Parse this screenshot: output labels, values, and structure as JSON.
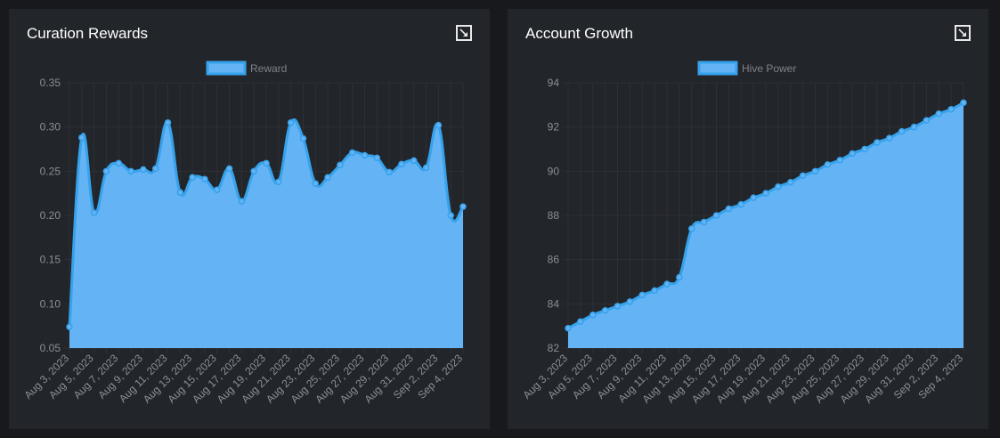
{
  "colors": {
    "accent": "#36a2eb",
    "fill": "#63b3f5",
    "grid": "#2d3035",
    "tick": "#8c8f95",
    "legend_text": "#7f8388"
  },
  "icons": {
    "expand": "expand-icon"
  },
  "charts": [
    {
      "title": "Curation Rewards",
      "chart_data": {
        "type": "area",
        "legend": {
          "position": "top",
          "entries": [
            "Reward"
          ]
        },
        "x": [
          "Aug 3, 2023",
          "Aug 4, 2023",
          "Aug 5, 2023",
          "Aug 6, 2023",
          "Aug 7, 2023",
          "Aug 8, 2023",
          "Aug 9, 2023",
          "Aug 10, 2023",
          "Aug 11, 2023",
          "Aug 12, 2023",
          "Aug 13, 2023",
          "Aug 14, 2023",
          "Aug 15, 2023",
          "Aug 16, 2023",
          "Aug 17, 2023",
          "Aug 18, 2023",
          "Aug 19, 2023",
          "Aug 20, 2023",
          "Aug 21, 2023",
          "Aug 22, 2023",
          "Aug 23, 2023",
          "Aug 24, 2023",
          "Aug 25, 2023",
          "Aug 26, 2023",
          "Aug 27, 2023",
          "Aug 28, 2023",
          "Aug 29, 2023",
          "Aug 30, 2023",
          "Aug 31, 2023",
          "Sep 1, 2023",
          "Sep 2, 2023",
          "Sep 3, 2023",
          "Sep 4, 2023"
        ],
        "x_ticks": [
          "Aug 3, 2023",
          "Aug 5, 2023",
          "Aug 7, 2023",
          "Aug 9, 2023",
          "Aug 11, 2023",
          "Aug 13, 2023",
          "Aug 15, 2023",
          "Aug 17, 2023",
          "Aug 19, 2023",
          "Aug 21, 2023",
          "Aug 23, 2023",
          "Aug 25, 2023",
          "Aug 27, 2023",
          "Aug 29, 2023",
          "Aug 31, 2023",
          "Sep 2, 2023",
          "Sep 4, 2023"
        ],
        "series": [
          {
            "name": "Reward",
            "values": [
              0.074,
              0.288,
              0.203,
              0.25,
              0.259,
              0.25,
              0.252,
              0.253,
              0.305,
              0.226,
              0.243,
              0.241,
              0.229,
              0.253,
              0.216,
              0.25,
              0.259,
              0.238,
              0.305,
              0.287,
              0.236,
              0.243,
              0.257,
              0.271,
              0.268,
              0.265,
              0.249,
              0.258,
              0.262,
              0.254,
              0.302,
              0.2,
              0.21
            ]
          }
        ],
        "ylim": [
          0.05,
          0.35
        ],
        "y_ticks": [
          "0.35",
          "0.30",
          "0.25",
          "0.20",
          "0.15",
          "0.10",
          "0.05"
        ],
        "grid": true
      }
    },
    {
      "title": "Account Growth",
      "chart_data": {
        "type": "area",
        "legend": {
          "position": "top",
          "entries": [
            "Hive Power"
          ]
        },
        "x": [
          "Aug 3, 2023",
          "Aug 4, 2023",
          "Aug 5, 2023",
          "Aug 6, 2023",
          "Aug 7, 2023",
          "Aug 8, 2023",
          "Aug 9, 2023",
          "Aug 10, 2023",
          "Aug 11, 2023",
          "Aug 12, 2023",
          "Aug 13, 2023",
          "Aug 14, 2023",
          "Aug 15, 2023",
          "Aug 16, 2023",
          "Aug 17, 2023",
          "Aug 18, 2023",
          "Aug 19, 2023",
          "Aug 20, 2023",
          "Aug 21, 2023",
          "Aug 22, 2023",
          "Aug 23, 2023",
          "Aug 24, 2023",
          "Aug 25, 2023",
          "Aug 26, 2023",
          "Aug 27, 2023",
          "Aug 28, 2023",
          "Aug 29, 2023",
          "Aug 30, 2023",
          "Aug 31, 2023",
          "Sep 1, 2023",
          "Sep 2, 2023",
          "Sep 3, 2023",
          "Sep 4, 2023"
        ],
        "x_ticks": [
          "Aug 3, 2023",
          "Aug 5, 2023",
          "Aug 7, 2023",
          "Aug 9, 2023",
          "Aug 11, 2023",
          "Aug 13, 2023",
          "Aug 15, 2023",
          "Aug 17, 2023",
          "Aug 19, 2023",
          "Aug 21, 2023",
          "Aug 23, 2023",
          "Aug 25, 2023",
          "Aug 27, 2023",
          "Aug 29, 2023",
          "Aug 31, 2023",
          "Sep 2, 2023",
          "Sep 4, 2023"
        ],
        "series": [
          {
            "name": "Hive Power",
            "values": [
              82.9,
              83.2,
              83.5,
              83.7,
              83.9,
              84.1,
              84.4,
              84.6,
              84.9,
              85.2,
              87.4,
              87.7,
              88.0,
              88.3,
              88.5,
              88.8,
              89.0,
              89.3,
              89.5,
              89.8,
              90.0,
              90.3,
              90.5,
              90.8,
              91.0,
              91.3,
              91.5,
              91.8,
              92.0,
              92.3,
              92.6,
              92.8,
              93.1
            ]
          }
        ],
        "ylim": [
          82,
          94
        ],
        "y_ticks": [
          "94",
          "92",
          "90",
          "88",
          "86",
          "84",
          "82"
        ],
        "grid": true
      }
    }
  ]
}
